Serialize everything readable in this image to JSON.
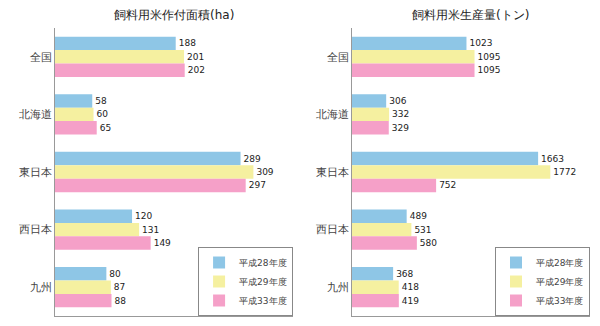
{
  "chart_data": [
    {
      "type": "bar",
      "orientation": "horizontal",
      "title": "飼料用米作付面積(ha)",
      "categories": [
        "全国",
        "北海道",
        "東日本",
        "西日本",
        "九州"
      ],
      "series": [
        {
          "name": "平成28年度",
          "color": "#8ec6e6",
          "values": [
            188,
            58,
            289,
            120,
            80
          ]
        },
        {
          "name": "平成29年度",
          "color": "#f5f0a0",
          "values": [
            201,
            60,
            309,
            131,
            87
          ]
        },
        {
          "name": "平成33年度",
          "color": "#f5a0c8",
          "values": [
            202,
            65,
            297,
            149,
            88
          ]
        }
      ],
      "xlim": [
        0,
        370.8
      ],
      "data_labels": true,
      "legend": "lower right",
      "grid": false,
      "tick_labels": "y"
    },
    {
      "type": "bar",
      "orientation": "horizontal",
      "title": "飼料用米生産量(トン)",
      "categories": [
        "全国",
        "北海道",
        "東日本",
        "西日本",
        "九州"
      ],
      "series": [
        {
          "name": "平成28年度",
          "color": "#8ec6e6",
          "values": [
            1023,
            306,
            1663,
            489,
            368
          ]
        },
        {
          "name": "平成29年度",
          "color": "#f5f0a0",
          "values": [
            1095,
            332,
            1772,
            531,
            418
          ]
        },
        {
          "name": "平成33年度",
          "color": "#f5a0c8",
          "values": [
            1095,
            329,
            752,
            580,
            419
          ]
        }
      ],
      "xlim": [
        0,
        2126.4
      ],
      "data_labels": true,
      "legend": "lower right",
      "grid": false,
      "tick_labels": "y"
    }
  ]
}
